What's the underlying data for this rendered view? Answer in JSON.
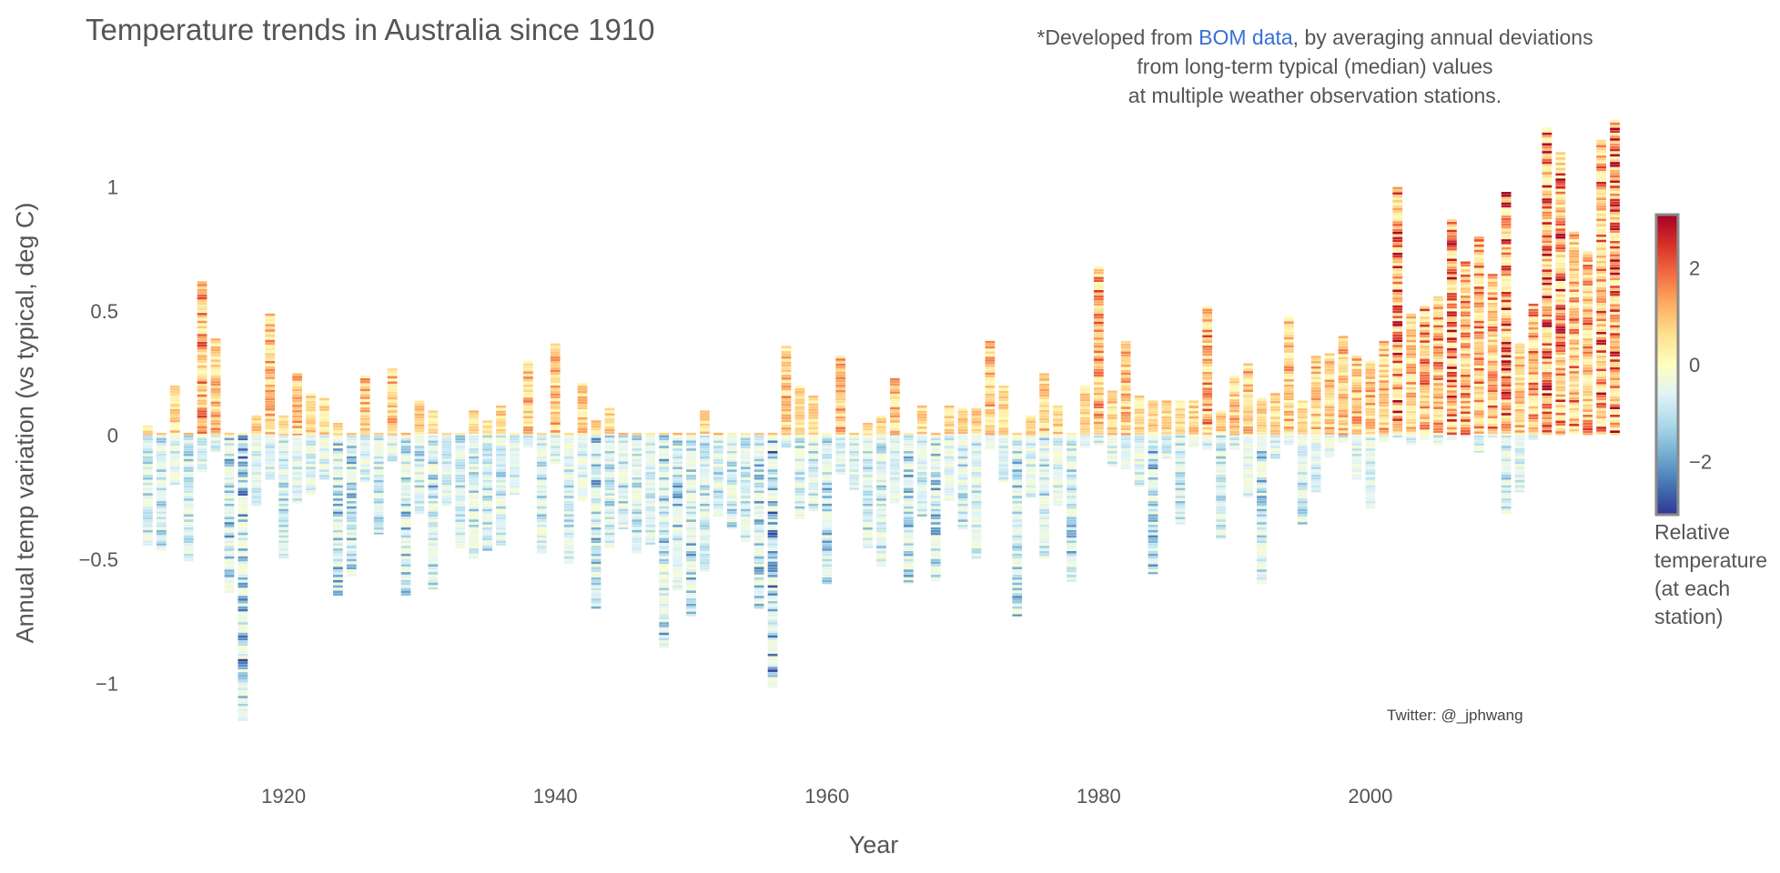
{
  "chart_data": {
    "type": "heatmap",
    "subtype": "stacked station-deviation strips per year",
    "title": "Temperature trends in Australia since 1910",
    "note": {
      "prefix": "*Developed from ",
      "link_text": "BOM data",
      "suffix": ", by averaging annual deviations",
      "line2": "from long-term typical (median) values",
      "line3": "at multiple weather observation stations."
    },
    "credit": "Twitter: @_jphwang",
    "xlabel": "Year",
    "ylabel": "Annual temp variation (vs typical, deg C)",
    "xlim": [
      1908.5,
      2018.5
    ],
    "ylim": [
      -1.25,
      1.35
    ],
    "x_ticks": [
      1920,
      1940,
      1960,
      1980,
      2000
    ],
    "y_ticks": [
      {
        "value": 1,
        "label": "1"
      },
      {
        "value": 0.5,
        "label": "0.5"
      },
      {
        "value": 0,
        "label": "0"
      },
      {
        "value": -0.5,
        "label": "−0.5"
      },
      {
        "value": -1,
        "label": "−1"
      }
    ],
    "colorbar": {
      "title_lines": [
        "Relative",
        "temperature",
        "(at each",
        "station)"
      ],
      "range": [
        -3.1,
        3.1
      ],
      "ticks": [
        {
          "value": 2,
          "label": "2"
        },
        {
          "value": 0,
          "label": "0"
        },
        {
          "value": -2,
          "label": "−2"
        }
      ],
      "colors": [
        "#313695",
        "#4575b4",
        "#74add1",
        "#abd9e9",
        "#e0f3f8",
        "#ffffbf",
        "#fee090",
        "#fdae61",
        "#f46d43",
        "#d73027",
        "#a50026"
      ]
    },
    "years": [
      1910,
      1911,
      1912,
      1913,
      1914,
      1915,
      1916,
      1917,
      1918,
      1919,
      1920,
      1921,
      1922,
      1923,
      1924,
      1925,
      1926,
      1927,
      1928,
      1929,
      1930,
      1931,
      1932,
      1933,
      1934,
      1935,
      1936,
      1937,
      1938,
      1939,
      1940,
      1941,
      1942,
      1943,
      1944,
      1945,
      1946,
      1947,
      1948,
      1949,
      1950,
      1951,
      1952,
      1953,
      1954,
      1955,
      1956,
      1957,
      1958,
      1959,
      1960,
      1961,
      1962,
      1963,
      1964,
      1965,
      1966,
      1967,
      1968,
      1969,
      1970,
      1971,
      1972,
      1973,
      1974,
      1975,
      1976,
      1977,
      1978,
      1979,
      1980,
      1981,
      1982,
      1983,
      1984,
      1985,
      1986,
      1987,
      1988,
      1989,
      1990,
      1991,
      1992,
      1993,
      1994,
      1995,
      1996,
      1997,
      1998,
      1999,
      2000,
      2001,
      2002,
      2003,
      2004,
      2005,
      2006,
      2007,
      2008,
      2009,
      2010,
      2011,
      2012,
      2013,
      2014,
      2015,
      2016,
      2017,
      2018
    ],
    "top": [
      0.04,
      0.01,
      0.2,
      0.01,
      0.62,
      0.39,
      0.01,
      0.01,
      0.08,
      0.49,
      0.08,
      0.25,
      0.17,
      0.15,
      0.05,
      0.01,
      0.24,
      0.01,
      0.27,
      0.01,
      0.14,
      0.1,
      0.01,
      0.01,
      0.1,
      0.06,
      0.12,
      0.01,
      0.3,
      0.01,
      0.37,
      0.01,
      0.21,
      0.06,
      0.11,
      0.01,
      0.01,
      0.01,
      0.01,
      0.01,
      0.01,
      0.1,
      0.01,
      0.01,
      0.01,
      0.01,
      0.01,
      0.36,
      0.2,
      0.16,
      0.01,
      0.32,
      0.01,
      0.05,
      0.08,
      0.23,
      0.01,
      0.12,
      0.01,
      0.12,
      0.11,
      0.11,
      0.38,
      0.2,
      0.01,
      0.08,
      0.25,
      0.12,
      0.01,
      0.2,
      0.68,
      0.18,
      0.38,
      0.16,
      0.14,
      0.14,
      0.14,
      0.14,
      0.52,
      0.1,
      0.24,
      0.29,
      0.15,
      0.17,
      0.48,
      0.14,
      0.32,
      0.33,
      0.4,
      0.32,
      0.3,
      0.38,
      1.0,
      0.49,
      0.52,
      0.56,
      0.87,
      0.7,
      0.8,
      0.65,
      0.98,
      0.37,
      0.53,
      1.24,
      1.14,
      0.82,
      0.74,
      1.19,
      1.27
    ],
    "bottom": [
      -0.45,
      -0.47,
      -0.2,
      -0.51,
      -0.15,
      -0.07,
      -0.64,
      -1.15,
      -0.29,
      -0.18,
      -0.5,
      -0.28,
      -0.24,
      -0.18,
      -0.65,
      -0.57,
      -0.19,
      -0.4,
      -0.11,
      -0.65,
      -0.32,
      -0.62,
      -0.29,
      -0.46,
      -0.5,
      -0.47,
      -0.45,
      -0.24,
      -0.05,
      -0.48,
      -0.12,
      -0.52,
      -0.27,
      -0.7,
      -0.46,
      -0.38,
      -0.48,
      -0.44,
      -0.86,
      -0.63,
      -0.73,
      -0.55,
      -0.33,
      -0.38,
      -0.43,
      -0.7,
      -1.02,
      -0.05,
      -0.34,
      -0.31,
      -0.6,
      -0.16,
      -0.22,
      -0.46,
      -0.53,
      -0.28,
      -0.6,
      -0.33,
      -0.59,
      -0.27,
      -0.38,
      -0.5,
      -0.06,
      -0.19,
      -0.73,
      -0.25,
      -0.5,
      -0.29,
      -0.59,
      -0.05,
      -0.04,
      -0.13,
      -0.14,
      -0.21,
      -0.56,
      -0.1,
      -0.36,
      -0.05,
      -0.06,
      -0.42,
      -0.06,
      -0.25,
      -0.6,
      -0.1,
      -0.04,
      -0.36,
      -0.23,
      -0.09,
      -0.03,
      -0.18,
      -0.3,
      -0.03,
      -0.01,
      -0.04,
      -0.02,
      -0.04,
      -0.02,
      -0.01,
      -0.07,
      -0.01,
      -0.32,
      -0.23,
      -0.02,
      0.01,
      0.01,
      0.01,
      0.01,
      0.01,
      0.01
    ]
  }
}
